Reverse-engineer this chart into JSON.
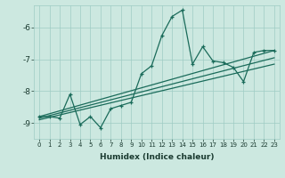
{
  "xlabel": "Humidex (Indice chaleur)",
  "bg_color": "#cce8e0",
  "grid_color": "#9fccc4",
  "line_color": "#1a6b5a",
  "x_min": -0.5,
  "x_max": 23.5,
  "y_min": -9.5,
  "y_max": -5.3,
  "yticks": [
    -9,
    -8,
    -7,
    -6
  ],
  "xticks": [
    0,
    1,
    2,
    3,
    4,
    5,
    6,
    7,
    8,
    9,
    10,
    11,
    12,
    13,
    14,
    15,
    16,
    17,
    18,
    19,
    20,
    21,
    22,
    23
  ],
  "zigzag_x": [
    0,
    1,
    2,
    3,
    4,
    5,
    6,
    7,
    8,
    9,
    10,
    11,
    12,
    13,
    14,
    15,
    16,
    17,
    18,
    19,
    20,
    21,
    22,
    23
  ],
  "zigzag_y": [
    -8.8,
    -8.8,
    -8.85,
    -8.1,
    -9.05,
    -8.8,
    -9.15,
    -8.55,
    -8.45,
    -8.35,
    -7.45,
    -7.2,
    -6.25,
    -5.65,
    -5.45,
    -7.15,
    -6.6,
    -7.05,
    -7.1,
    -7.25,
    -7.7,
    -6.78,
    -6.72,
    -6.72
  ],
  "line1_x": [
    0,
    23
  ],
  "line1_y": [
    -8.8,
    -6.72
  ],
  "line2_x": [
    0,
    23
  ],
  "line2_y": [
    -8.85,
    -6.95
  ],
  "line3_x": [
    0,
    23
  ],
  "line3_y": [
    -8.9,
    -7.15
  ]
}
